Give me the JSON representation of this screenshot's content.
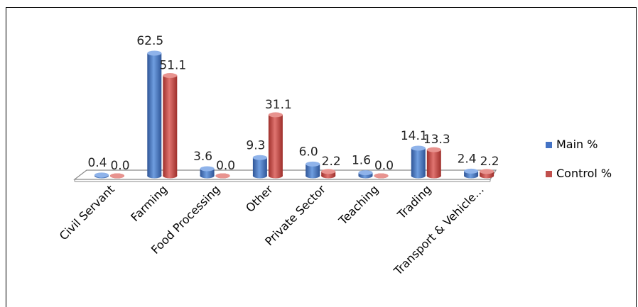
{
  "chart_data": {
    "type": "bar",
    "title": "",
    "xlabel": "",
    "ylabel": "",
    "ylim": [
      0,
      65
    ],
    "grid": false,
    "legend_position": "right",
    "categories": [
      "Civil Servant",
      "Farming",
      "Food Processing",
      "Other",
      "Private Sector",
      "Teaching",
      "Trading",
      "Transport & Vehicle…"
    ],
    "series": [
      {
        "name": "Main %",
        "color": "#4472C4",
        "values": [
          0.4,
          62.5,
          3.6,
          9.3,
          6.0,
          1.6,
          14.1,
          2.4
        ]
      },
      {
        "name": "Control %",
        "color": "#C0504D",
        "values": [
          0.0,
          51.1,
          0.0,
          31.1,
          2.2,
          0.0,
          13.3,
          2.2
        ]
      }
    ],
    "data_labels": [
      [
        "0.4",
        "62.5",
        "3.6",
        "9.3",
        "6.0",
        "1.6",
        "14.1",
        "2.4"
      ],
      [
        "0.0",
        "51.1",
        "0.0",
        "31.1",
        "2.2",
        "0.0",
        "13.3",
        "2.2"
      ]
    ]
  }
}
